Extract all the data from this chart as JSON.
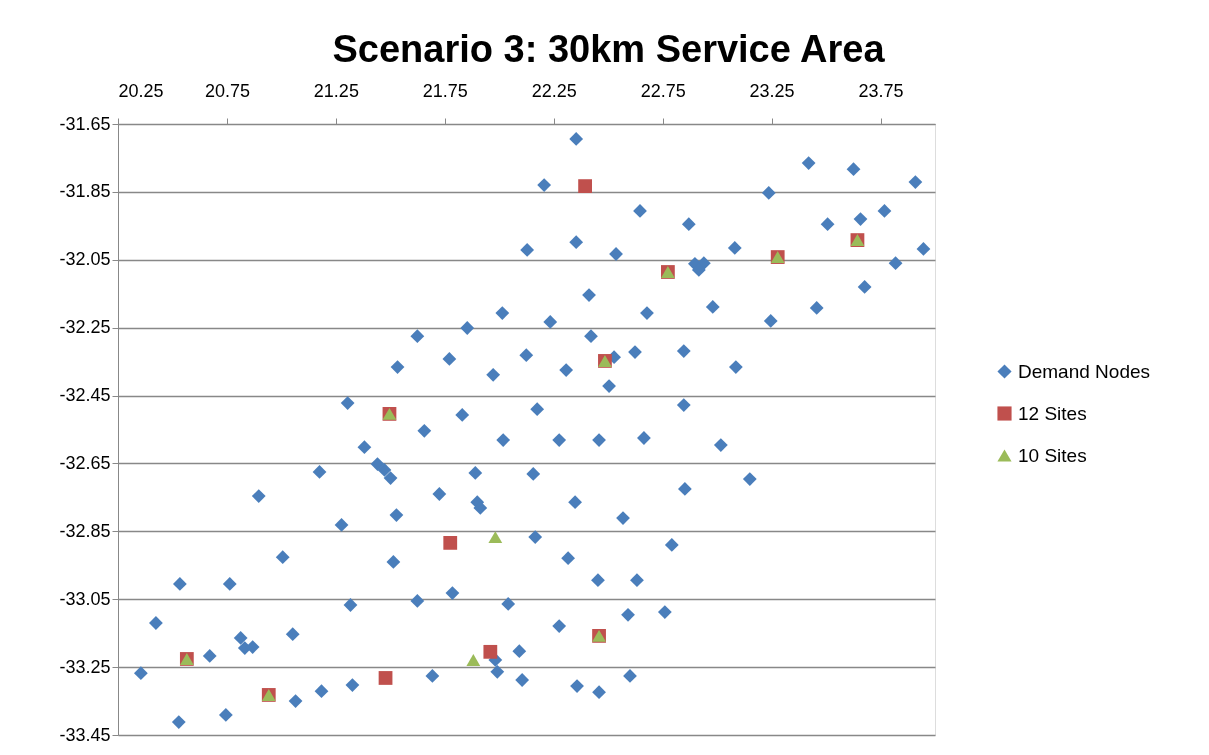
{
  "chart_data": {
    "type": "scatter",
    "title": "Scenario 3: 30km Service Area",
    "xlim": [
      20.25,
      24.0
    ],
    "xticks": [
      20.25,
      20.75,
      21.25,
      21.75,
      22.25,
      22.75,
      23.25,
      23.75
    ],
    "ylim": [
      -33.45,
      -31.65
    ],
    "yticks": [
      -31.65,
      -31.85,
      -32.05,
      -32.25,
      -32.45,
      -32.65,
      -32.85,
      -33.05,
      -33.25,
      -33.45
    ],
    "grid": "y",
    "legend": "right",
    "series": [
      {
        "name": "Demand Nodes",
        "color": "#4a7ebb",
        "marker": "diamond",
        "x": [
          22.353,
          22.206,
          23.42,
          23.626,
          23.91,
          23.237,
          22.646,
          23.768,
          22.87,
          23.507,
          23.658,
          22.353,
          22.128,
          22.536,
          23.081,
          23.947,
          22.898,
          22.939,
          22.916,
          23.819,
          22.412,
          23.677,
          22.98,
          23.457,
          22.014,
          22.678,
          22.234,
          23.246,
          21.624,
          21.853,
          22.124,
          22.623,
          22.847,
          21.771,
          21.533,
          21.972,
          22.307,
          22.527,
          22.504,
          22.421,
          23.086,
          21.304,
          21.83,
          22.174,
          22.847,
          21.656,
          22.018,
          22.275,
          22.458,
          22.664,
          23.017,
          21.381,
          21.441,
          21.473,
          21.501,
          21.175,
          21.89,
          22.156,
          23.15,
          22.852,
          20.896,
          21.725,
          21.899,
          21.913,
          22.348,
          21.528,
          21.276,
          22.568,
          22.165,
          22.792,
          21.006,
          21.514,
          22.316,
          20.534,
          20.763,
          22.453,
          22.632,
          21.624,
          21.785,
          21.317,
          22.041,
          22.275,
          22.591,
          22.76,
          20.424,
          20.813,
          20.832,
          20.868,
          21.052,
          20.671,
          21.982,
          21.991,
          22.092,
          22.105,
          20.355,
          21.693,
          22.357,
          22.458,
          22.6,
          21.184,
          21.065,
          21.326,
          20.745,
          20.529
        ],
        "values": [
          -31.694,
          -31.83,
          -31.765,
          -31.783,
          -31.821,
          -31.853,
          -31.906,
          -31.906,
          -31.945,
          -31.945,
          -31.93,
          -31.998,
          -32.021,
          -32.033,
          -32.015,
          -32.018,
          -32.062,
          -32.06,
          -32.08,
          -32.06,
          -32.154,
          -32.13,
          -32.189,
          -32.192,
          -32.207,
          -32.207,
          -32.233,
          -32.23,
          -32.275,
          -32.251,
          -32.331,
          -32.322,
          -32.319,
          -32.342,
          -32.366,
          -32.389,
          -32.375,
          -32.337,
          -32.422,
          -32.275,
          -32.366,
          -32.472,
          -32.507,
          -32.49,
          -32.478,
          -32.554,
          -32.581,
          -32.581,
          -32.581,
          -32.575,
          -32.596,
          -32.602,
          -32.652,
          -32.669,
          -32.693,
          -32.675,
          -32.678,
          -32.681,
          -32.696,
          -32.725,
          -32.746,
          -32.74,
          -32.764,
          -32.781,
          -32.764,
          -32.802,
          -32.831,
          -32.811,
          -32.867,
          -32.89,
          -32.926,
          -32.94,
          -32.929,
          -33.005,
          -33.005,
          -32.994,
          -32.994,
          -33.055,
          -33.032,
          -33.067,
          -33.064,
          -33.129,
          -33.096,
          -33.088,
          -33.12,
          -33.164,
          -33.194,
          -33.191,
          -33.153,
          -33.217,
          -33.229,
          -33.264,
          -33.203,
          -33.288,
          -33.268,
          -33.276,
          -33.306,
          -33.324,
          -33.276,
          -33.321,
          -33.35,
          -33.303,
          -33.391,
          -33.412
        ]
      },
      {
        "name": "12 Sites",
        "color": "#c0504d",
        "marker": "square",
        "x": [
          22.394,
          22.774,
          23.278,
          23.644,
          22.485,
          21.496,
          21.775,
          20.566,
          20.942,
          21.478,
          21.959,
          22.458
        ],
        "values": [
          -31.833,
          -32.086,
          -32.042,
          -31.992,
          -32.348,
          -32.504,
          -32.884,
          -33.226,
          -33.332,
          -33.282,
          -33.205,
          -33.158
        ]
      },
      {
        "name": "10 Sites",
        "color": "#9bbb59",
        "marker": "triangle",
        "x": [
          22.774,
          23.278,
          23.644,
          22.485,
          21.496,
          21.982,
          20.566,
          20.942,
          21.881,
          22.458
        ],
        "values": [
          -32.086,
          -32.042,
          -31.992,
          -32.348,
          -32.504,
          -32.867,
          -33.226,
          -33.332,
          -33.229,
          -33.158
        ]
      }
    ]
  }
}
